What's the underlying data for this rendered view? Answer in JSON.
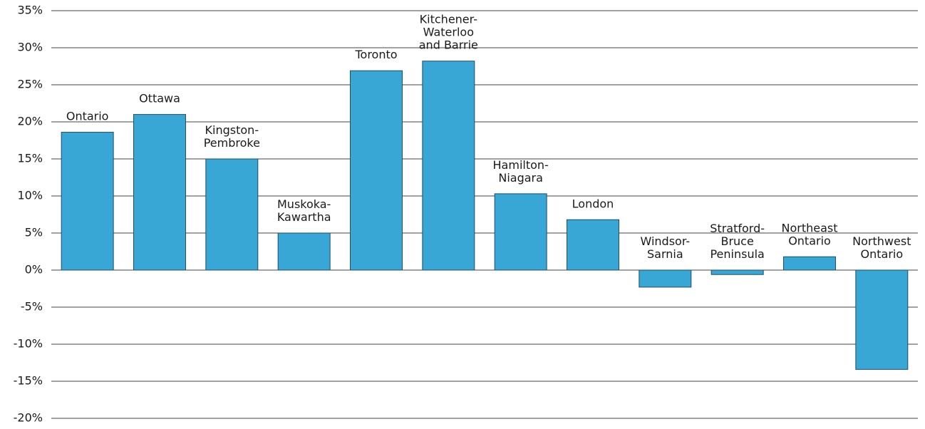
{
  "chart_data": {
    "type": "bar",
    "categories": [
      "Ontario",
      "Ottawa",
      "Kingston-\nPembroke",
      "Muskoka-\nKawartha",
      "Toronto",
      "Kitchener-\nWaterloo\nand Barrie",
      "Hamilton-\nNiagara",
      "London",
      "Windsor-\nSarnia",
      "Stratford-\nBruce\nPeninsula",
      "Northeast\nOntario",
      "Northwest\nOntario"
    ],
    "values": [
      18.6,
      21,
      15,
      5,
      26.9,
      28.2,
      10.3,
      6.8,
      -2.3,
      -0.6,
      1.8,
      -13.4
    ],
    "color": "#39a7d6",
    "ylim": [
      -20,
      35
    ],
    "yticks": [
      {
        "value": -20,
        "label": "-20%"
      },
      {
        "value": -15,
        "label": "-15%"
      },
      {
        "value": -10,
        "label": "-10%"
      },
      {
        "value": -5,
        "label": "-5%"
      },
      {
        "value": 0,
        "label": "0%"
      },
      {
        "value": 5,
        "label": "5%"
      },
      {
        "value": 10,
        "label": "10%"
      },
      {
        "value": 15,
        "label": "15%"
      },
      {
        "value": 20,
        "label": "20%"
      },
      {
        "value": 25,
        "label": "25%"
      },
      {
        "value": 30,
        "label": "30%"
      },
      {
        "value": 35,
        "label": "35%"
      }
    ],
    "grid": true
  }
}
